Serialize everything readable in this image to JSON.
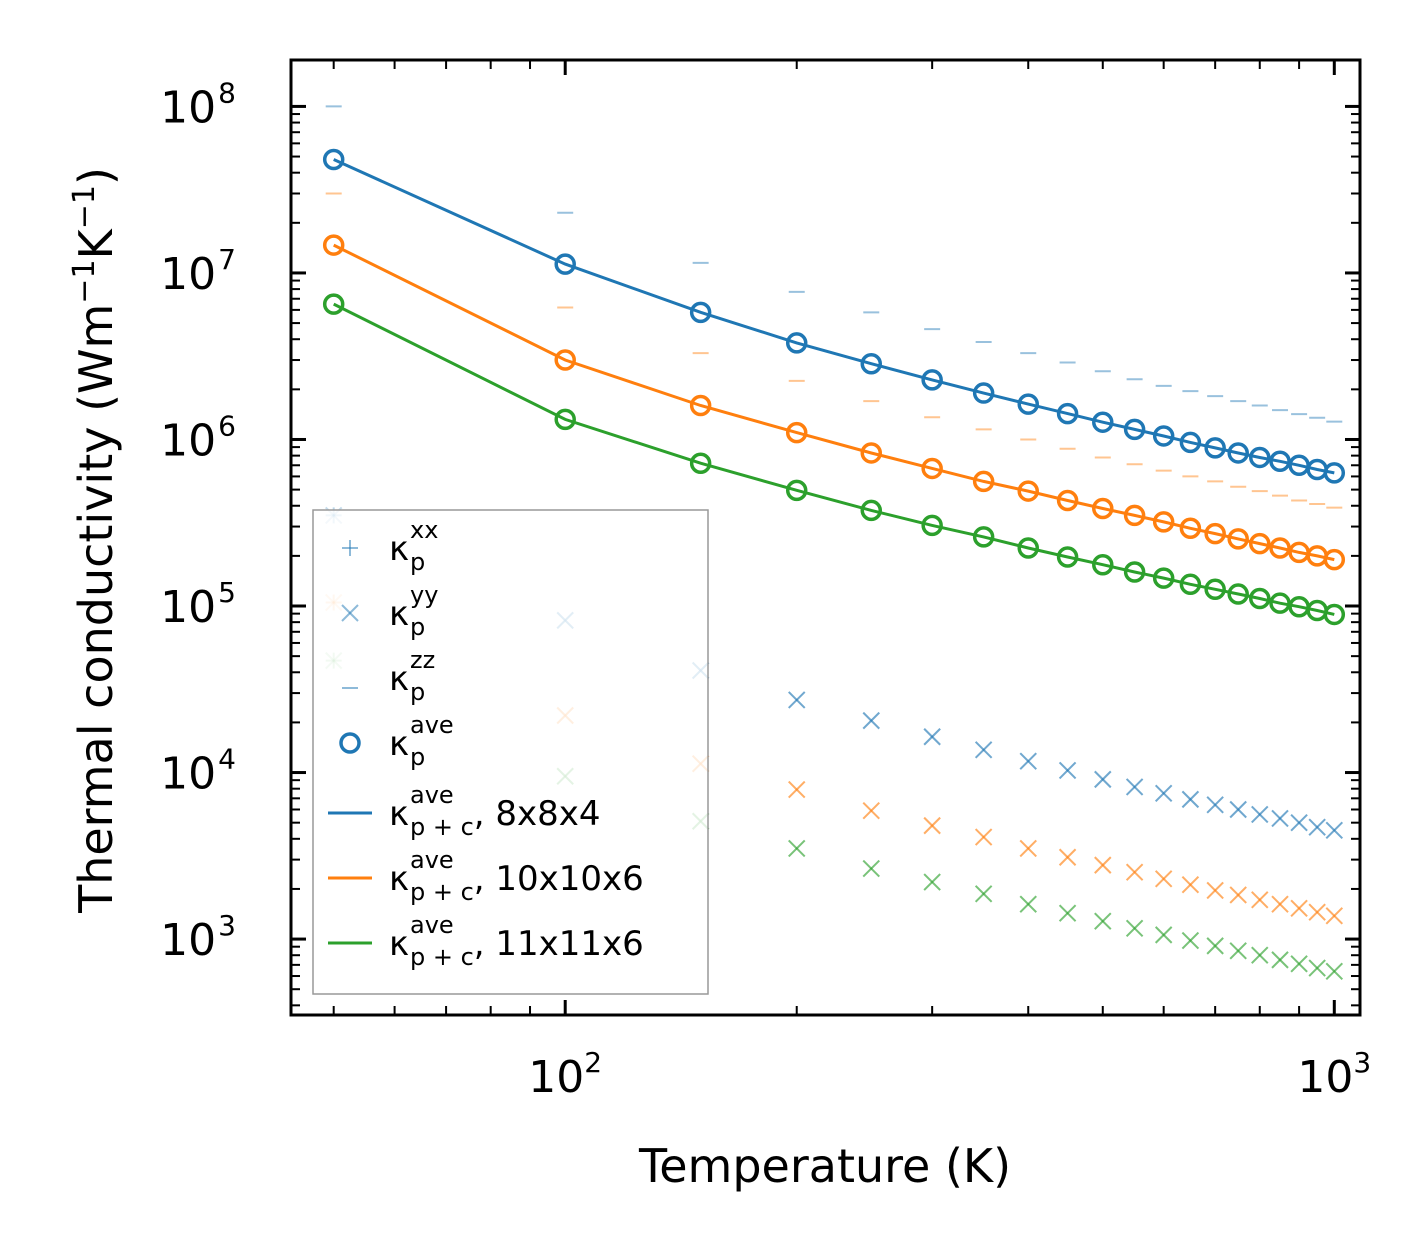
{
  "chart_data": {
    "type": "scatter",
    "xlabel": "Temperature (K)",
    "ylabel": "Thermal conductivity (Wm",
    "ylabel_unit_parts": [
      "−1",
      "K",
      "−1",
      ")"
    ],
    "xscale": "log",
    "yscale": "log",
    "xlim": [
      44,
      1080
    ],
    "ylim": [
      350,
      190000000
    ],
    "x_ticks": [
      {
        "value": 100,
        "base": "10",
        "exp": "2"
      },
      {
        "value": 1000,
        "base": "10",
        "exp": "3"
      }
    ],
    "y_ticks": [
      {
        "value": 1000,
        "base": "10",
        "exp": "3"
      },
      {
        "value": 10000,
        "base": "10",
        "exp": "4"
      },
      {
        "value": 100000,
        "base": "10",
        "exp": "5"
      },
      {
        "value": 1000000,
        "base": "10",
        "exp": "6"
      },
      {
        "value": 10000000,
        "base": "10",
        "exp": "7"
      },
      {
        "value": 100000000,
        "base": "10",
        "exp": "8"
      }
    ],
    "x": [
      50,
      100,
      150,
      200,
      250,
      300,
      350,
      400,
      450,
      500,
      550,
      600,
      650,
      700,
      750,
      800,
      850,
      900,
      950,
      1000
    ],
    "series": [
      {
        "name": "8x8x4",
        "color": "#1f77b4",
        "kxx": [
          350000,
          82000,
          41000,
          27300,
          20500,
          16400,
          13700,
          11700,
          10300,
          9100,
          8200,
          7500,
          6900,
          6400,
          6000,
          5600,
          5300,
          5000,
          4700,
          4500
        ],
        "kyy": [
          350000,
          82000,
          41000,
          27300,
          20500,
          16400,
          13700,
          11700,
          10300,
          9100,
          8200,
          7500,
          6900,
          6400,
          6000,
          5600,
          5300,
          5000,
          4700,
          4500
        ],
        "kzz": [
          100000000,
          23000000,
          11500000,
          7700000,
          5800000,
          4600000,
          3850000,
          3300000,
          2900000,
          2570000,
          2300000,
          2100000,
          1950000,
          1820000,
          1700000,
          1600000,
          1500000,
          1420000,
          1350000,
          1280000
        ],
        "kave": [
          48000000,
          11300000,
          5800000,
          3800000,
          2850000,
          2280000,
          1900000,
          1630000,
          1430000,
          1270000,
          1150000,
          1050000,
          960000,
          890000,
          830000,
          780000,
          740000,
          700000,
          660000,
          630000
        ],
        "kpc": [
          48000000,
          11300000,
          5800000,
          3800000,
          2850000,
          2280000,
          1900000,
          1630000,
          1430000,
          1270000,
          1150000,
          1050000,
          960000,
          890000,
          830000,
          780000,
          740000,
          700000,
          660000,
          630000
        ]
      },
      {
        "name": "10x10x6",
        "color": "#ff7f0e",
        "kxx": [
          105000,
          22000,
          11300,
          7900,
          5900,
          4800,
          4100,
          3500,
          3100,
          2780,
          2520,
          2300,
          2120,
          1960,
          1840,
          1720,
          1620,
          1530,
          1450,
          1380
        ],
        "kyy": [
          105000,
          22000,
          11300,
          7900,
          5900,
          4800,
          4100,
          3500,
          3100,
          2780,
          2520,
          2300,
          2120,
          1960,
          1840,
          1720,
          1620,
          1530,
          1450,
          1380
        ],
        "kzz": [
          30000000,
          6200000,
          3300000,
          2250000,
          1700000,
          1360000,
          1150000,
          1000000,
          880000,
          780000,
          710000,
          650000,
          600000,
          560000,
          520000,
          490000,
          460000,
          430000,
          410000,
          390000
        ],
        "kave": [
          14700000,
          3000000,
          1600000,
          1100000,
          830000,
          670000,
          560000,
          490000,
          430000,
          385000,
          350000,
          320000,
          293000,
          272000,
          253000,
          237000,
          223000,
          210000,
          200000,
          190000
        ],
        "kpc": [
          14700000,
          3000000,
          1600000,
          1100000,
          830000,
          670000,
          560000,
          490000,
          430000,
          385000,
          350000,
          320000,
          293000,
          272000,
          253000,
          237000,
          223000,
          210000,
          200000,
          190000
        ]
      },
      {
        "name": "11x11x6",
        "color": "#2ca02c",
        "kxx": [
          47000,
          9500,
          5100,
          3500,
          2650,
          2200,
          1870,
          1620,
          1430,
          1280,
          1160,
          1060,
          980,
          910,
          850,
          800,
          750,
          710,
          670,
          640
        ],
        "kyy": [
          47000,
          9500,
          5100,
          3500,
          2650,
          2200,
          1870,
          1620,
          1430,
          1280,
          1160,
          1060,
          980,
          910,
          850,
          800,
          750,
          710,
          670,
          640
        ],
        "kzz": [],
        "kave": [
          6500000,
          1320000,
          720000,
          495000,
          375000,
          305000,
          260000,
          223000,
          197000,
          177000,
          160000,
          147000,
          135000,
          126000,
          118000,
          111000,
          104000,
          99000,
          94000,
          89000
        ],
        "kpc": [
          6500000,
          1320000,
          720000,
          495000,
          375000,
          305000,
          260000,
          223000,
          197000,
          177000,
          160000,
          147000,
          135000,
          126000,
          118000,
          111000,
          104000,
          99000,
          94000,
          89000
        ]
      }
    ],
    "legend": {
      "location": "lower-left",
      "entries": [
        {
          "marker": "+",
          "color": "#1f77b4",
          "base": "κ",
          "sup": "xx",
          "sub": "p",
          "suffix": ""
        },
        {
          "marker": "x",
          "color": "#1f77b4",
          "base": "κ",
          "sup": "yy",
          "sub": "p",
          "suffix": ""
        },
        {
          "marker": "_",
          "color": "#1f77b4",
          "base": "κ",
          "sup": "zz",
          "sub": "p",
          "suffix": ""
        },
        {
          "marker": "o",
          "color": "#1f77b4",
          "base": "κ",
          "sup": "ave",
          "sub": "p",
          "suffix": ""
        },
        {
          "marker": "line",
          "color": "#1f77b4",
          "base": "κ",
          "sup": "ave",
          "sub": "p + c",
          "suffix": ", 8x8x4"
        },
        {
          "marker": "line",
          "color": "#ff7f0e",
          "base": "κ",
          "sup": "ave",
          "sub": "p + c",
          "suffix": ", 10x10x6"
        },
        {
          "marker": "line",
          "color": "#2ca02c",
          "base": "κ",
          "sup": "ave",
          "sub": "p + c",
          "suffix": ", 11x11x6"
        }
      ]
    }
  }
}
